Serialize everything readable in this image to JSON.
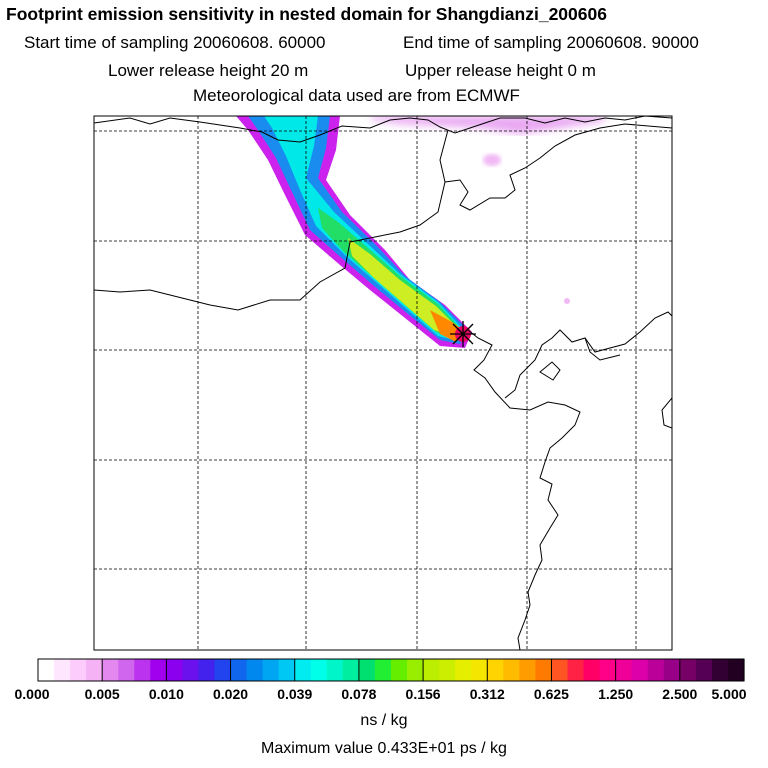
{
  "header": {
    "title": "Footprint emission sensitivity in nested domain for Shangdianzi_200606",
    "start_time": "Start time of sampling 20060608. 60000",
    "end_time": "End time of sampling 20060608. 90000",
    "lower_height": "Lower release height   20 m",
    "upper_height": "Upper release height    0 m",
    "met_data": "Meteorological data used are from ECMWF"
  },
  "colorbar": {
    "ticks": [
      "0.000",
      "0.005",
      "0.010",
      "0.020",
      "0.039",
      "0.078",
      "0.156",
      "0.312",
      "0.625",
      "1.250",
      "2.500",
      "5.000"
    ],
    "colors": [
      "#ffffff",
      "#ffe6ff",
      "#fcccfc",
      "#f5b3f5",
      "#e288ee",
      "#d066ee",
      "#bb33ee",
      "#a000ee",
      "#8b00ee",
      "#6a11ee",
      "#4422ee",
      "#2244ee",
      "#1166ee",
      "#0088ee",
      "#00a6f2",
      "#00c8f5",
      "#00ecf0",
      "#00ffe8",
      "#00f5c8",
      "#00eea0",
      "#00e070",
      "#22ee33",
      "#66ee00",
      "#99ee00",
      "#bbee00",
      "#ccee00",
      "#e6ee00",
      "#f5e600",
      "#ffd400",
      "#ffbb00",
      "#ff9c00",
      "#ff7a00",
      "#ff5522",
      "#ff2244",
      "#ff0066",
      "#ff0088",
      "#ee0099",
      "#dd00aa",
      "#bb0099",
      "#990088",
      "#770066",
      "#550055",
      "#330033",
      "#220022"
    ],
    "units": "ns / kg",
    "maximum": "Maximum value  0.433E+01 ps / kg"
  },
  "map": {
    "receptor": "Shangdianzi",
    "plume_colors": {
      "outer": "#cc22ee",
      "blue": "#1a8cf0",
      "cyan": "#00e8e8",
      "green": "#22dd66",
      "yellow": "#ccee22",
      "orange": "#ff8800",
      "peak": "#ee0066"
    }
  }
}
